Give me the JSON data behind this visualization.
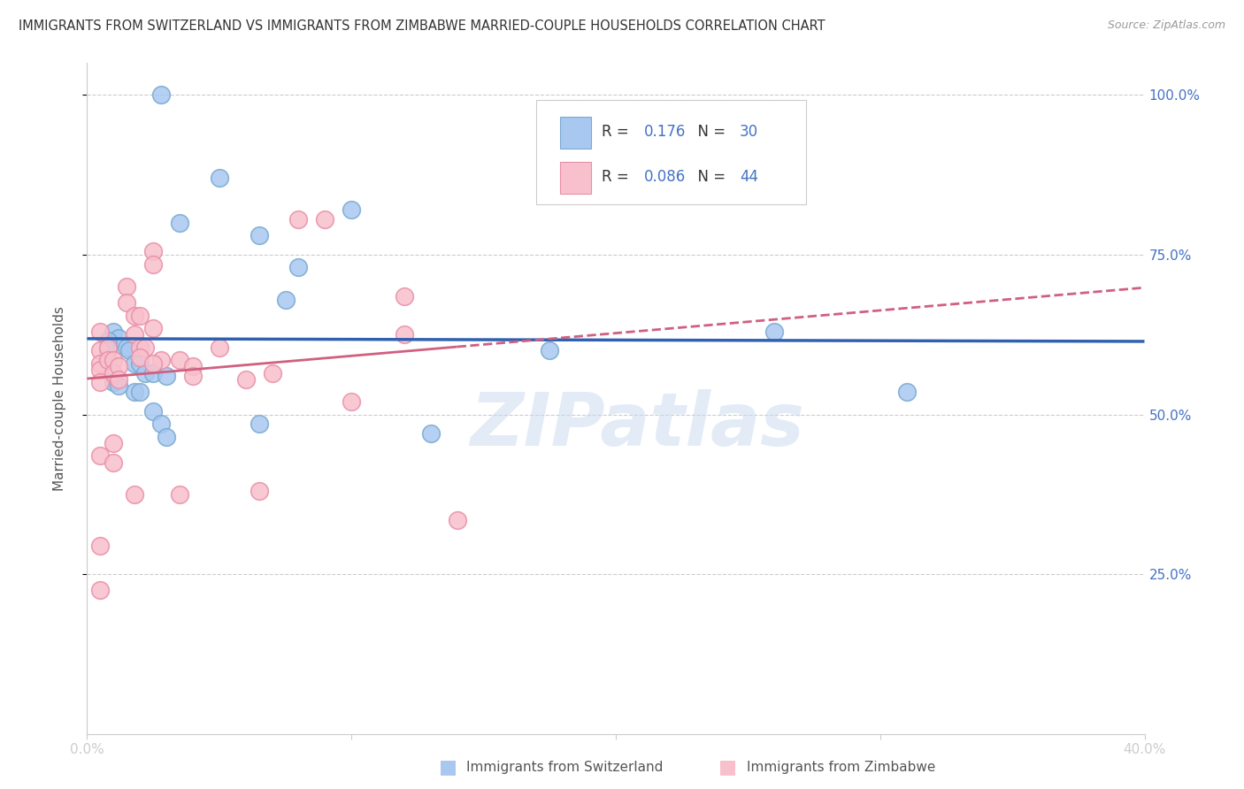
{
  "title": "IMMIGRANTS FROM SWITZERLAND VS IMMIGRANTS FROM ZIMBABWE MARRIED-COUPLE HOUSEHOLDS CORRELATION CHART",
  "source": "Source: ZipAtlas.com",
  "xlabel_bottom": [
    "Immigrants from Switzerland",
    "Immigrants from Zimbabwe"
  ],
  "ylabel": "Married-couple Households",
  "xlim": [
    0.0,
    0.4
  ],
  "ylim": [
    0.0,
    1.05
  ],
  "legend_r1": "0.176",
  "legend_n1": "30",
  "legend_r2": "0.086",
  "legend_n2": "44",
  "blue_scatter_color": "#a8c8f0",
  "blue_edge_color": "#7aaad0",
  "pink_scatter_color": "#f8c0cc",
  "pink_edge_color": "#e890a8",
  "line_blue": "#3060b0",
  "line_pink": "#d06080",
  "watermark": "ZIPatlas",
  "swiss_x": [
    0.028,
    0.05,
    0.035,
    0.065,
    0.08,
    0.075,
    0.1,
    0.01,
    0.012,
    0.015,
    0.016,
    0.018,
    0.02,
    0.022,
    0.025,
    0.03,
    0.018,
    0.02,
    0.025,
    0.028,
    0.03,
    0.175,
    0.26,
    0.31,
    0.065,
    0.13,
    0.008,
    0.008,
    0.01,
    0.012
  ],
  "swiss_y": [
    1.0,
    0.87,
    0.8,
    0.78,
    0.73,
    0.68,
    0.82,
    0.63,
    0.62,
    0.605,
    0.6,
    0.58,
    0.58,
    0.565,
    0.565,
    0.56,
    0.535,
    0.535,
    0.505,
    0.485,
    0.465,
    0.6,
    0.63,
    0.535,
    0.485,
    0.47,
    0.615,
    0.6,
    0.55,
    0.545
  ],
  "zim_x": [
    0.005,
    0.005,
    0.005,
    0.005,
    0.005,
    0.008,
    0.008,
    0.01,
    0.01,
    0.012,
    0.012,
    0.015,
    0.015,
    0.018,
    0.018,
    0.02,
    0.02,
    0.022,
    0.025,
    0.025,
    0.025,
    0.028,
    0.035,
    0.04,
    0.05,
    0.06,
    0.07,
    0.08,
    0.09,
    0.12,
    0.14,
    0.005,
    0.005,
    0.01,
    0.018,
    0.035,
    0.12,
    0.005,
    0.01,
    0.02,
    0.025,
    0.04,
    0.065,
    0.1
  ],
  "zim_y": [
    0.63,
    0.6,
    0.58,
    0.57,
    0.55,
    0.605,
    0.585,
    0.585,
    0.565,
    0.575,
    0.555,
    0.7,
    0.675,
    0.655,
    0.625,
    0.655,
    0.605,
    0.605,
    0.755,
    0.735,
    0.635,
    0.585,
    0.585,
    0.575,
    0.605,
    0.555,
    0.565,
    0.805,
    0.805,
    0.625,
    0.335,
    0.295,
    0.225,
    0.455,
    0.375,
    0.375,
    0.685,
    0.435,
    0.425,
    0.59,
    0.58,
    0.56,
    0.38,
    0.52
  ],
  "background_color": "#ffffff",
  "grid_color": "#cccccc",
  "tick_color": "#4472c4"
}
